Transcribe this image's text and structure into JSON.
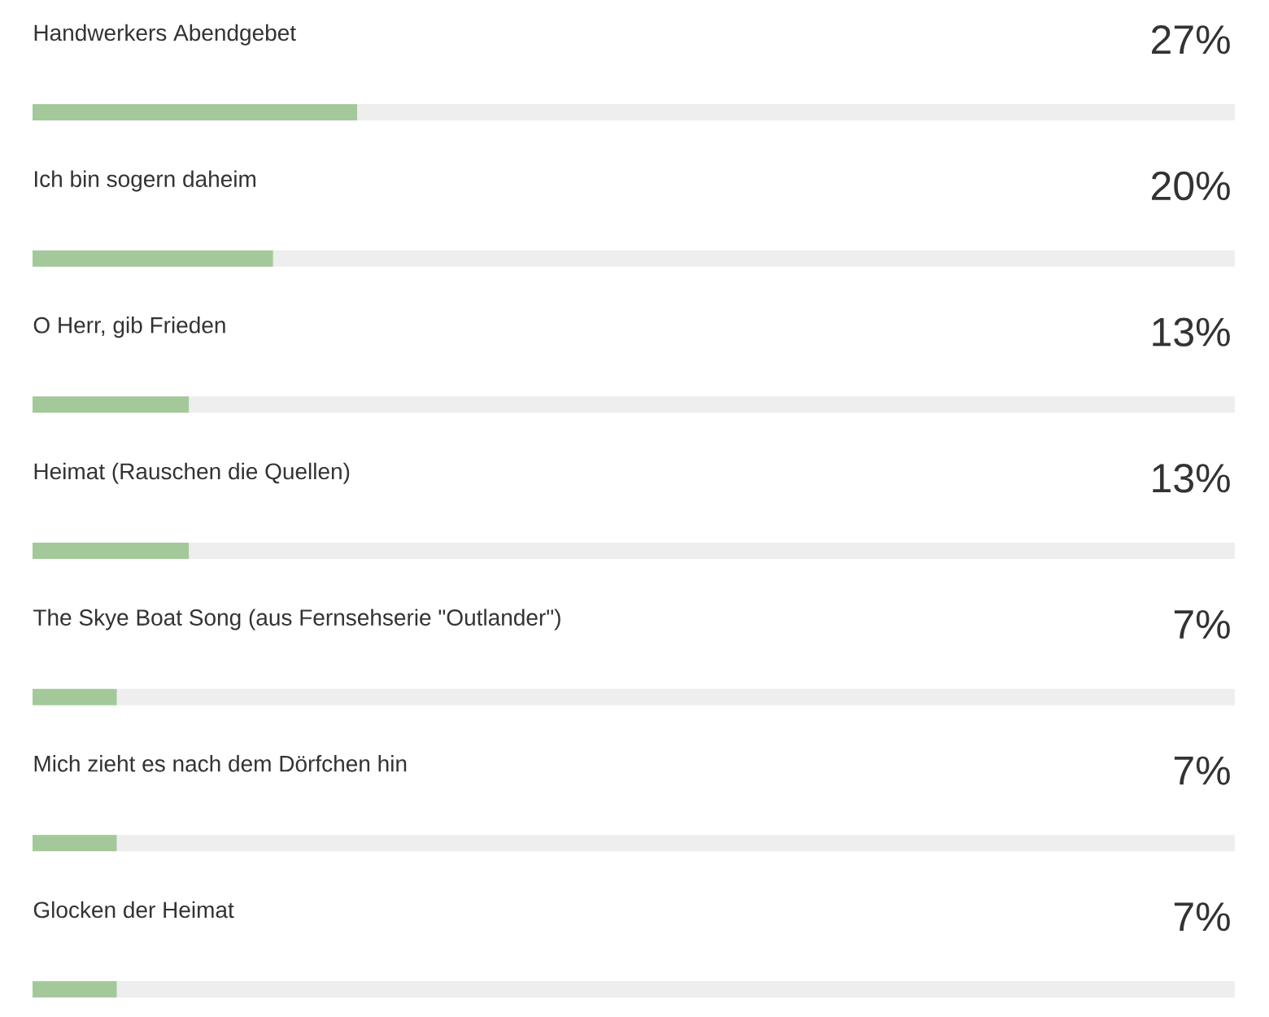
{
  "chart_data": {
    "type": "bar",
    "orientation": "horizontal",
    "categories": [
      "Handwerkers Abendgebet",
      "Ich bin sogern daheim",
      "O Herr, gib Frieden",
      "Heimat (Rauschen die Quellen)",
      "The Skye Boat Song (aus Fernsehserie \"Outlander\")",
      "Mich zieht es nach dem Dörfchen hin",
      "Glocken der Heimat"
    ],
    "values": [
      27,
      20,
      13,
      13,
      7,
      7,
      7
    ],
    "value_labels": [
      "27%",
      "20%",
      "13%",
      "13%",
      "7%",
      "7%",
      "7%"
    ],
    "color": "#a3c99a",
    "xlim": [
      0,
      100
    ]
  }
}
